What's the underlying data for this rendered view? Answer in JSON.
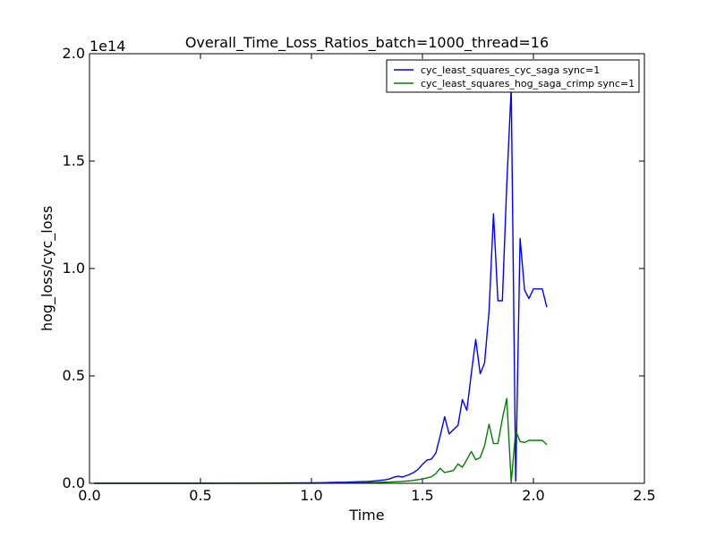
{
  "chart_data": {
    "type": "line",
    "title": "Overall_Time_Loss_Ratios_batch=1000_thread=16",
    "xlabel": "Time",
    "ylabel": "hog_loss/cyc_loss",
    "xlim": [
      0.0,
      2.5
    ],
    "ylim": [
      0.0,
      2.0
    ],
    "y_offset_label": "1e14",
    "xticks": [
      {
        "value": 0.0,
        "label": "0.0"
      },
      {
        "value": 0.5,
        "label": "0.5"
      },
      {
        "value": 1.0,
        "label": "1.0"
      },
      {
        "value": 1.5,
        "label": "1.5"
      },
      {
        "value": 2.0,
        "label": "2.0"
      },
      {
        "value": 2.5,
        "label": "2.5"
      }
    ],
    "yticks": [
      {
        "value": 0.0,
        "label": "0.0"
      },
      {
        "value": 0.5,
        "label": "0.5"
      },
      {
        "value": 1.0,
        "label": "1.0"
      },
      {
        "value": 1.5,
        "label": "1.5"
      },
      {
        "value": 2.0,
        "label": "2.0"
      }
    ],
    "grid": false,
    "legend_position": "top-right",
    "series": [
      {
        "name": "cyc_least_squares_cyc_saga sync=1",
        "color": "#0000ff",
        "x": [
          0.02,
          0.2,
          0.4,
          0.6,
          0.8,
          0.9,
          1.0,
          1.05,
          1.1,
          1.15,
          1.2,
          1.23,
          1.25,
          1.28,
          1.3,
          1.33,
          1.35,
          1.37,
          1.39,
          1.41,
          1.44,
          1.46,
          1.48,
          1.5,
          1.52,
          1.54,
          1.56,
          1.58,
          1.6,
          1.62,
          1.64,
          1.66,
          1.68,
          1.7,
          1.72,
          1.74,
          1.76,
          1.78,
          1.8,
          1.82,
          1.84,
          1.86,
          1.88,
          1.9,
          1.92,
          1.94,
          1.96,
          1.98,
          2.0,
          2.02,
          2.04,
          2.06
        ],
        "y": [
          0.0,
          0.0,
          0.0,
          0.0005,
          0.001,
          0.0015,
          0.002,
          0.003,
          0.004,
          0.005,
          0.007,
          0.008,
          0.008,
          0.011,
          0.013,
          0.016,
          0.02,
          0.028,
          0.033,
          0.029,
          0.04,
          0.05,
          0.064,
          0.088,
          0.108,
          0.112,
          0.14,
          0.22,
          0.31,
          0.23,
          0.25,
          0.27,
          0.39,
          0.34,
          0.51,
          0.67,
          0.51,
          0.56,
          0.8,
          1.255,
          0.85,
          0.85,
          1.39,
          1.84,
          0.01,
          1.14,
          0.9,
          0.86,
          0.905,
          0.905,
          0.905,
          0.82
        ]
      },
      {
        "name": "cyc_least_squares_hog_saga_crimp sync=1",
        "color": "#008000",
        "x": [
          0.02,
          0.2,
          0.4,
          0.6,
          0.8,
          1.0,
          1.1,
          1.2,
          1.25,
          1.3,
          1.35,
          1.4,
          1.45,
          1.5,
          1.54,
          1.56,
          1.58,
          1.6,
          1.62,
          1.64,
          1.66,
          1.68,
          1.7,
          1.72,
          1.74,
          1.76,
          1.78,
          1.8,
          1.82,
          1.84,
          1.86,
          1.88,
          1.9,
          1.92,
          1.94,
          1.96,
          1.98,
          2.0,
          2.02,
          2.04,
          2.06
        ],
        "y": [
          0.0,
          0.0,
          0.0,
          0.0,
          0.0,
          0.0005,
          0.001,
          0.002,
          0.003,
          0.004,
          0.006,
          0.008,
          0.012,
          0.02,
          0.03,
          0.045,
          0.07,
          0.05,
          0.055,
          0.06,
          0.09,
          0.075,
          0.11,
          0.148,
          0.11,
          0.12,
          0.175,
          0.275,
          0.185,
          0.185,
          0.3,
          0.395,
          0.005,
          0.245,
          0.195,
          0.19,
          0.2,
          0.2,
          0.2,
          0.2,
          0.18
        ]
      }
    ]
  }
}
